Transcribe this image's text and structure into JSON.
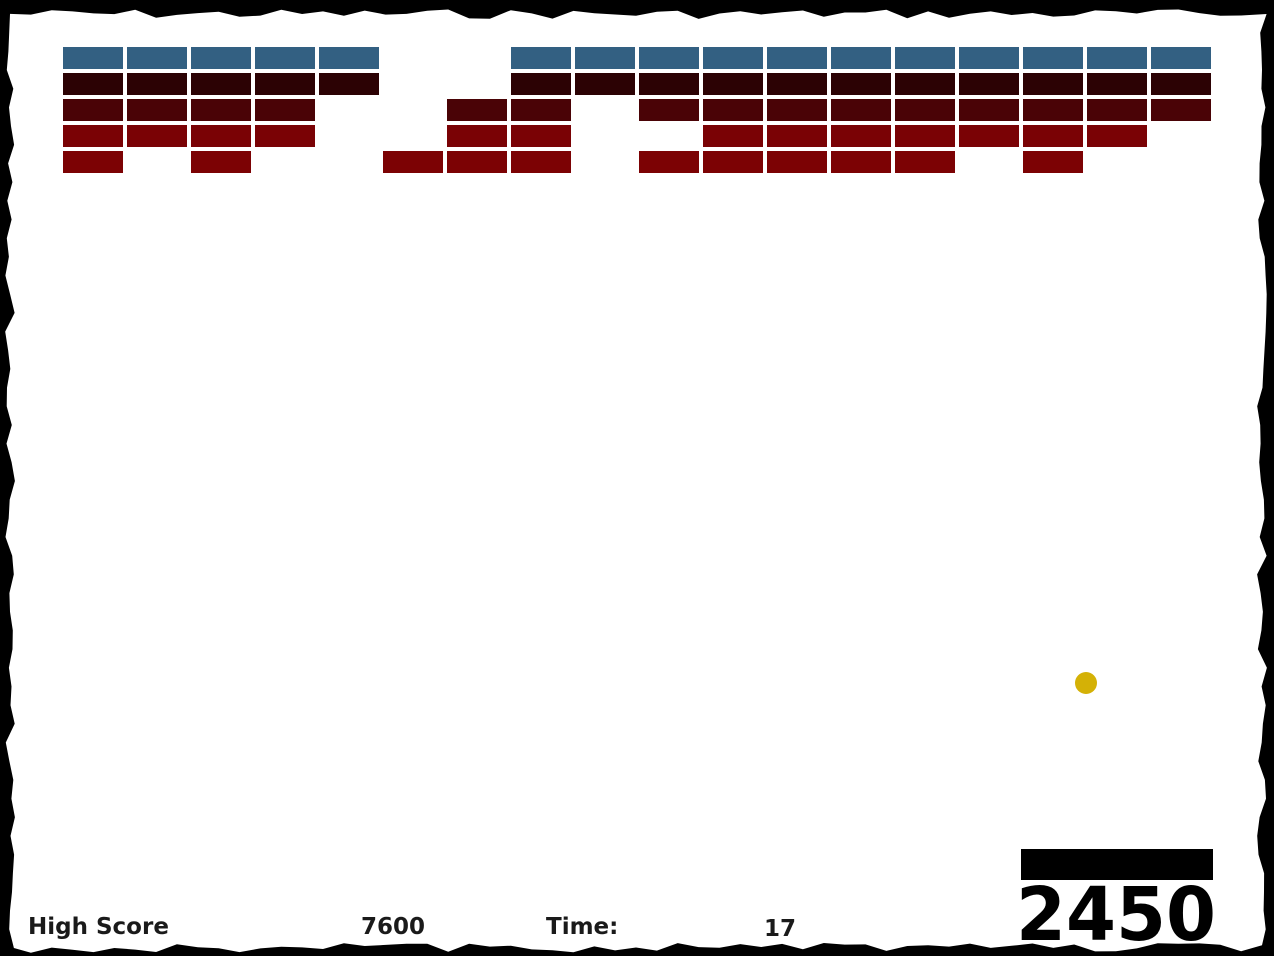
{
  "hud": {
    "high_score_label": "High Score",
    "high_score": "7600",
    "time_label": "Time:",
    "time": "17",
    "score": "2450"
  }
}
